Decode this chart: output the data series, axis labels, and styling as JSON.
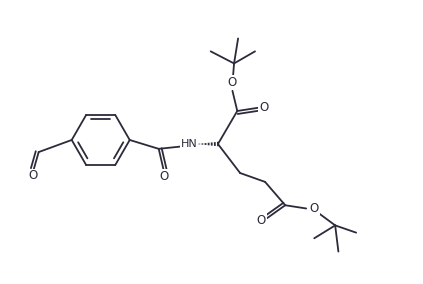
{
  "bg_color": "#ffffff",
  "line_color": "#2b2b3b",
  "atom_color": "#2b2b3b",
  "line_width": 1.3,
  "figsize": [
    4.23,
    2.84
  ],
  "dpi": 100,
  "xlim": [
    0,
    10.5
  ],
  "ylim": [
    0,
    7.0
  ]
}
